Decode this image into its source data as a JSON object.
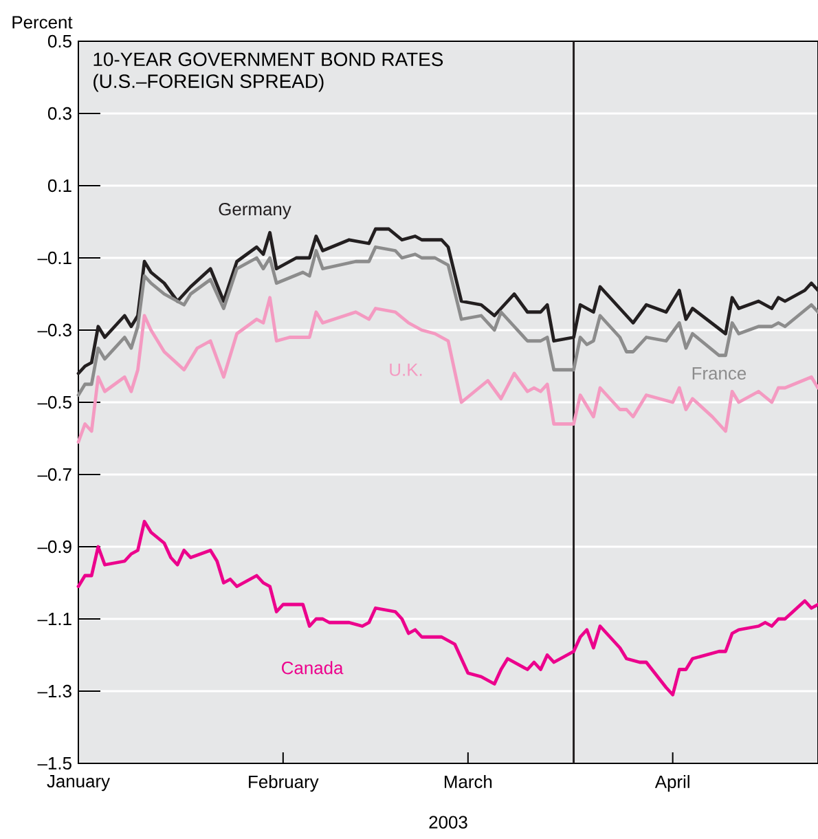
{
  "chart_data": {
    "type": "line",
    "title": "10-YEAR GOVERNMENT BOND RATES",
    "subtitle": "(U.S.–FOREIGN SPREAD)",
    "ylabel": "Percent",
    "xlabel": "2003",
    "xlim": [
      "2003-01-01",
      "2003-04-23"
    ],
    "xticks": [
      {
        "value": "2003-01-01",
        "label": "January"
      },
      {
        "value": "2003-02-01",
        "label": "February"
      },
      {
        "value": "2003-03-01",
        "label": "March"
      },
      {
        "value": "2003-04-01",
        "label": "April"
      }
    ],
    "ylim": [
      -1.5,
      0.5
    ],
    "yticks": [
      {
        "value": -1.5,
        "label": "–1.5"
      },
      {
        "value": -1.3,
        "label": "–1.3"
      },
      {
        "value": -1.1,
        "label": "–1.1"
      },
      {
        "value": -0.9,
        "label": "–0.9"
      },
      {
        "value": -0.7,
        "label": "–0.7"
      },
      {
        "value": -0.5,
        "label": "–0.5"
      },
      {
        "value": -0.3,
        "label": "–0.3"
      },
      {
        "value": -0.1,
        "label": "–0.1"
      },
      0.1,
      0.3,
      0.5
    ],
    "grid": "y",
    "ref_lines": [
      {
        "axis": "x",
        "value": "2003-03-17",
        "color": "#231f20"
      }
    ],
    "series": [
      {
        "name": "Germany",
        "color": "#231f20",
        "x": [
          "2003-01-01",
          "2003-01-02",
          "2003-01-03",
          "2003-01-04",
          "2003-01-05",
          "2003-01-08",
          "2003-01-09",
          "2003-01-10",
          "2003-01-11",
          "2003-01-12",
          "2003-01-14",
          "2003-01-16",
          "2003-01-18",
          "2003-01-21",
          "2003-01-23",
          "2003-01-25",
          "2003-01-28",
          "2003-01-29",
          "2003-01-30",
          "2003-01-31",
          "2003-02-03",
          "2003-02-05",
          "2003-02-06",
          "2003-02-07",
          "2003-02-11",
          "2003-02-14",
          "2003-02-15",
          "2003-02-17",
          "2003-02-19",
          "2003-02-21",
          "2003-02-22",
          "2003-02-25",
          "2003-02-26",
          "2003-02-28",
          "2003-03-03",
          "2003-03-05",
          "2003-03-08",
          "2003-03-10",
          "2003-03-12",
          "2003-03-13",
          "2003-03-14",
          "2003-03-17",
          "2003-03-18",
          "2003-03-20",
          "2003-03-21",
          "2003-03-26",
          "2003-03-28",
          "2003-03-31",
          "2003-04-02",
          "2003-04-03",
          "2003-04-04",
          "2003-04-09",
          "2003-04-10",
          "2003-04-11",
          "2003-04-14",
          "2003-04-16",
          "2003-04-17",
          "2003-04-18",
          "2003-04-21",
          "2003-04-22",
          "2003-04-23"
        ],
        "values": [
          -0.42,
          -0.4,
          -0.39,
          -0.29,
          -0.32,
          -0.26,
          -0.29,
          -0.26,
          -0.11,
          -0.14,
          -0.17,
          -0.22,
          -0.18,
          -0.13,
          -0.22,
          -0.11,
          -0.07,
          -0.09,
          -0.03,
          -0.13,
          -0.1,
          -0.1,
          -0.04,
          -0.08,
          -0.05,
          -0.06,
          -0.02,
          -0.02,
          -0.05,
          -0.04,
          -0.05,
          -0.05,
          -0.07,
          -0.22,
          -0.23,
          -0.26,
          -0.2,
          -0.25,
          -0.25,
          -0.23,
          -0.33,
          -0.32,
          -0.23,
          -0.25,
          -0.18,
          -0.28,
          -0.23,
          -0.25,
          -0.19,
          -0.27,
          -0.24,
          -0.31,
          -0.21,
          -0.24,
          -0.22,
          -0.24,
          -0.21,
          -0.22,
          -0.19,
          -0.17,
          -0.19
        ]
      },
      {
        "name": "France",
        "color": "#8c8c8c",
        "x": [
          "2003-01-01",
          "2003-01-02",
          "2003-01-03",
          "2003-01-04",
          "2003-01-05",
          "2003-01-08",
          "2003-01-09",
          "2003-01-10",
          "2003-01-11",
          "2003-01-12",
          "2003-01-14",
          "2003-01-17",
          "2003-01-18",
          "2003-01-21",
          "2003-01-23",
          "2003-01-25",
          "2003-01-28",
          "2003-01-29",
          "2003-01-30",
          "2003-01-31",
          "2003-02-04",
          "2003-02-05",
          "2003-02-06",
          "2003-02-07",
          "2003-02-12",
          "2003-02-14",
          "2003-02-15",
          "2003-02-18",
          "2003-02-19",
          "2003-02-21",
          "2003-02-22",
          "2003-02-24",
          "2003-02-26",
          "2003-02-28",
          "2003-03-03",
          "2003-03-05",
          "2003-03-06",
          "2003-03-08",
          "2003-03-10",
          "2003-03-12",
          "2003-03-13",
          "2003-03-14",
          "2003-03-17",
          "2003-03-18",
          "2003-03-19",
          "2003-03-20",
          "2003-03-21",
          "2003-03-24",
          "2003-03-25",
          "2003-03-26",
          "2003-03-28",
          "2003-03-31",
          "2003-04-02",
          "2003-04-03",
          "2003-04-04",
          "2003-04-08",
          "2003-04-09",
          "2003-04-10",
          "2003-04-11",
          "2003-04-14",
          "2003-04-16",
          "2003-04-17",
          "2003-04-18",
          "2003-04-22",
          "2003-04-23"
        ],
        "values": [
          -0.48,
          -0.45,
          -0.45,
          -0.35,
          -0.38,
          -0.32,
          -0.35,
          -0.29,
          -0.15,
          -0.17,
          -0.2,
          -0.23,
          -0.2,
          -0.16,
          -0.24,
          -0.13,
          -0.1,
          -0.13,
          -0.1,
          -0.17,
          -0.14,
          -0.15,
          -0.08,
          -0.13,
          -0.11,
          -0.11,
          -0.07,
          -0.08,
          -0.1,
          -0.09,
          -0.1,
          -0.1,
          -0.12,
          -0.27,
          -0.26,
          -0.3,
          -0.25,
          -0.29,
          -0.33,
          -0.33,
          -0.32,
          -0.41,
          -0.41,
          -0.32,
          -0.34,
          -0.33,
          -0.26,
          -0.32,
          -0.36,
          -0.36,
          -0.32,
          -0.33,
          -0.28,
          -0.35,
          -0.31,
          -0.37,
          -0.37,
          -0.28,
          -0.31,
          -0.29,
          -0.29,
          -0.28,
          -0.29,
          -0.23,
          -0.25
        ]
      },
      {
        "name": "U.K.",
        "color": "#f49ac1",
        "x": [
          "2003-01-01",
          "2003-01-02",
          "2003-01-03",
          "2003-01-04",
          "2003-01-05",
          "2003-01-08",
          "2003-01-09",
          "2003-01-10",
          "2003-01-11",
          "2003-01-12",
          "2003-01-14",
          "2003-01-17",
          "2003-01-19",
          "2003-01-21",
          "2003-01-23",
          "2003-01-25",
          "2003-01-28",
          "2003-01-29",
          "2003-01-30",
          "2003-01-31",
          "2003-02-02",
          "2003-02-05",
          "2003-02-06",
          "2003-02-07",
          "2003-02-12",
          "2003-02-14",
          "2003-02-15",
          "2003-02-18",
          "2003-02-20",
          "2003-02-22",
          "2003-02-24",
          "2003-02-26",
          "2003-02-28",
          "2003-03-04",
          "2003-03-06",
          "2003-03-08",
          "2003-03-10",
          "2003-03-11",
          "2003-03-12",
          "2003-03-13",
          "2003-03-14",
          "2003-03-17",
          "2003-03-18",
          "2003-03-20",
          "2003-03-21",
          "2003-03-24",
          "2003-03-25",
          "2003-03-26",
          "2003-03-28",
          "2003-04-01",
          "2003-04-02",
          "2003-04-03",
          "2003-04-04",
          "2003-04-07",
          "2003-04-09",
          "2003-04-10",
          "2003-04-11",
          "2003-04-14",
          "2003-04-16",
          "2003-04-17",
          "2003-04-18",
          "2003-04-22",
          "2003-04-23"
        ],
        "values": [
          -0.61,
          -0.56,
          -0.58,
          -0.43,
          -0.47,
          -0.43,
          -0.47,
          -0.41,
          -0.26,
          -0.3,
          -0.36,
          -0.41,
          -0.35,
          -0.33,
          -0.43,
          -0.31,
          -0.27,
          -0.28,
          -0.21,
          -0.33,
          -0.32,
          -0.32,
          -0.25,
          -0.28,
          -0.25,
          -0.27,
          -0.24,
          -0.25,
          -0.28,
          -0.3,
          -0.31,
          -0.33,
          -0.5,
          -0.44,
          -0.49,
          -0.42,
          -0.47,
          -0.46,
          -0.47,
          -0.45,
          -0.56,
          -0.56,
          -0.48,
          -0.54,
          -0.46,
          -0.52,
          -0.52,
          -0.54,
          -0.48,
          -0.5,
          -0.46,
          -0.52,
          -0.49,
          -0.54,
          -0.58,
          -0.47,
          -0.5,
          -0.47,
          -0.5,
          -0.46,
          -0.46,
          -0.43,
          -0.46
        ]
      },
      {
        "name": "Canada",
        "color": "#ec008c",
        "x": [
          "2003-01-01",
          "2003-01-02",
          "2003-01-03",
          "2003-01-04",
          "2003-01-05",
          "2003-01-08",
          "2003-01-09",
          "2003-01-10",
          "2003-01-11",
          "2003-01-12",
          "2003-01-14",
          "2003-01-15",
          "2003-01-16",
          "2003-01-17",
          "2003-01-18",
          "2003-01-21",
          "2003-01-22",
          "2003-01-23",
          "2003-01-24",
          "2003-01-25",
          "2003-01-28",
          "2003-01-29",
          "2003-01-30",
          "2003-01-31",
          "2003-02-01",
          "2003-02-04",
          "2003-02-05",
          "2003-02-06",
          "2003-02-07",
          "2003-02-08",
          "2003-02-11",
          "2003-02-13",
          "2003-02-14",
          "2003-02-15",
          "2003-02-18",
          "2003-02-19",
          "2003-02-20",
          "2003-02-21",
          "2003-02-22",
          "2003-02-25",
          "2003-02-27",
          "2003-03-01",
          "2003-03-03",
          "2003-03-05",
          "2003-03-06",
          "2003-03-07",
          "2003-03-10",
          "2003-03-11",
          "2003-03-12",
          "2003-03-13",
          "2003-03-14",
          "2003-03-17",
          "2003-03-18",
          "2003-03-19",
          "2003-03-20",
          "2003-03-21",
          "2003-03-24",
          "2003-03-25",
          "2003-03-27",
          "2003-03-28",
          "2003-03-31",
          "2003-04-01",
          "2003-04-02",
          "2003-04-03",
          "2003-04-04",
          "2003-04-08",
          "2003-04-09",
          "2003-04-10",
          "2003-04-11",
          "2003-04-14",
          "2003-04-15",
          "2003-04-16",
          "2003-04-17",
          "2003-04-18",
          "2003-04-21",
          "2003-04-22",
          "2003-04-23"
        ],
        "values": [
          -1.01,
          -0.98,
          -0.98,
          -0.9,
          -0.95,
          -0.94,
          -0.92,
          -0.91,
          -0.83,
          -0.86,
          -0.89,
          -0.93,
          -0.95,
          -0.91,
          -0.93,
          -0.91,
          -0.94,
          -1.0,
          -0.99,
          -1.01,
          -0.98,
          -1.0,
          -1.01,
          -1.08,
          -1.06,
          -1.06,
          -1.12,
          -1.1,
          -1.1,
          -1.11,
          -1.11,
          -1.12,
          -1.11,
          -1.07,
          -1.08,
          -1.1,
          -1.14,
          -1.13,
          -1.15,
          -1.15,
          -1.17,
          -1.25,
          -1.26,
          -1.28,
          -1.24,
          -1.21,
          -1.24,
          -1.22,
          -1.24,
          -1.2,
          -1.22,
          -1.19,
          -1.15,
          -1.13,
          -1.18,
          -1.12,
          -1.18,
          -1.21,
          -1.22,
          -1.22,
          -1.29,
          -1.31,
          -1.24,
          -1.24,
          -1.21,
          -1.19,
          -1.19,
          -1.14,
          -1.13,
          -1.12,
          -1.11,
          -1.12,
          -1.1,
          -1.1,
          -1.05,
          -1.07,
          -1.06
        ]
      }
    ]
  }
}
